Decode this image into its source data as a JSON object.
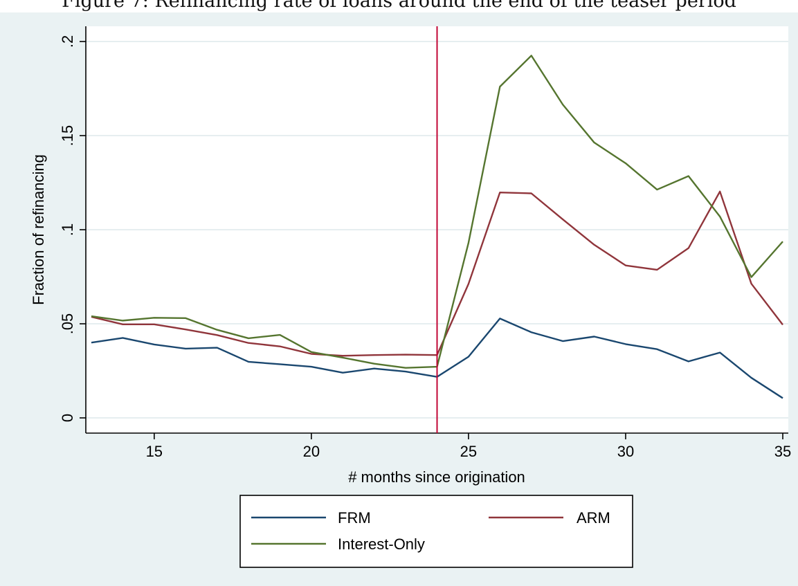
{
  "figure": {
    "caption": "Figure 7: Refinancing rate of loans around the end of the teaser period"
  },
  "colors": {
    "background": "#eaf2f3",
    "plot_background": "#ffffff",
    "grid": "#e6eef0",
    "frm": "#1a476f",
    "arm": "#90353b",
    "interest_only": "#55752f",
    "vline": "#c10534"
  },
  "chart_data": {
    "type": "line",
    "title": "",
    "xlabel": "# months since origination",
    "ylabel": "Fraction of refinancing",
    "xlim": [
      13,
      35
    ],
    "ylim": [
      0,
      0.2
    ],
    "x_ticks": [
      15,
      20,
      25,
      30,
      35
    ],
    "x_tick_labels": [
      "15",
      "20",
      "25",
      "30",
      "35"
    ],
    "y_ticks": [
      0,
      0.05,
      0.1,
      0.15,
      0.2
    ],
    "y_tick_labels": [
      "0",
      ".05",
      ".1",
      ".15",
      ".2"
    ],
    "grid": "horizontal",
    "legend_position": "bottom",
    "vline_x": 24,
    "x": [
      13,
      14,
      15,
      16,
      17,
      18,
      19,
      20,
      21,
      22,
      23,
      24,
      25,
      26,
      27,
      28,
      29,
      30,
      31,
      32,
      33,
      34,
      35
    ],
    "series": [
      {
        "name": "FRM",
        "color_key": "frm",
        "values": [
          0.04,
          0.0425,
          0.039,
          0.0368,
          0.0373,
          0.0298,
          0.0285,
          0.0272,
          0.024,
          0.0262,
          0.0246,
          0.0218,
          0.0325,
          0.0528,
          0.0455,
          0.0408,
          0.0432,
          0.0392,
          0.0365,
          0.03,
          0.0347,
          0.0213,
          0.0105
        ]
      },
      {
        "name": "ARM",
        "color_key": "arm",
        "values": [
          0.0537,
          0.0497,
          0.0497,
          0.047,
          0.044,
          0.0398,
          0.038,
          0.034,
          0.033,
          0.0334,
          0.0336,
          0.0334,
          0.0712,
          0.1198,
          0.1193,
          0.1055,
          0.092,
          0.081,
          0.0787,
          0.0902,
          0.1203,
          0.0713,
          0.0495
        ]
      },
      {
        "name": "Interest-Only",
        "color_key": "interest_only",
        "values": [
          0.054,
          0.0517,
          0.0532,
          0.053,
          0.0468,
          0.0423,
          0.0441,
          0.035,
          0.032,
          0.0288,
          0.0266,
          0.0272,
          0.093,
          0.176,
          0.1925,
          0.1665,
          0.1463,
          0.1353,
          0.1213,
          0.1285,
          0.107,
          0.0748,
          0.0937
        ]
      }
    ]
  }
}
